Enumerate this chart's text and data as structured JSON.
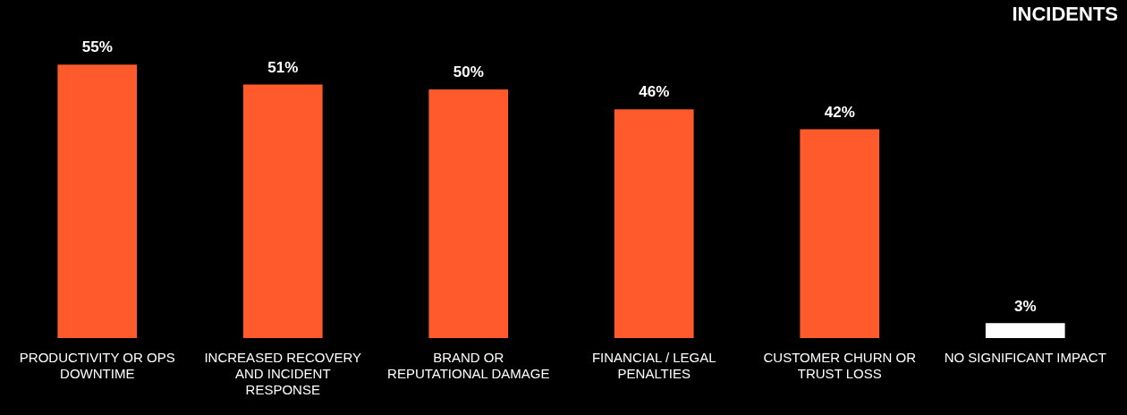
{
  "chart_data": {
    "type": "bar",
    "title": "INCIDENTS",
    "categories": [
      "PRODUCTIVITY OR OPS DOWNTIME",
      "INCREASED RECOVERY AND INCIDENT RESPONSE",
      "BRAND OR REPUTATIONAL DAMAGE",
      "FINANCIAL / LEGAL PENALTIES",
      "CUSTOMER CHURN OR TRUST LOSS",
      "NO SIGNIFICANT IMPACT"
    ],
    "values": [
      55,
      51,
      50,
      46,
      42,
      3
    ],
    "value_labels": [
      "55%",
      "51%",
      "50%",
      "46%",
      "42%",
      "3%"
    ],
    "colors": [
      "#ff5a2b",
      "#ff5a2b",
      "#ff5a2b",
      "#ff5a2b",
      "#ff5a2b",
      "#ffffff"
    ],
    "grid": false,
    "legend": false
  }
}
